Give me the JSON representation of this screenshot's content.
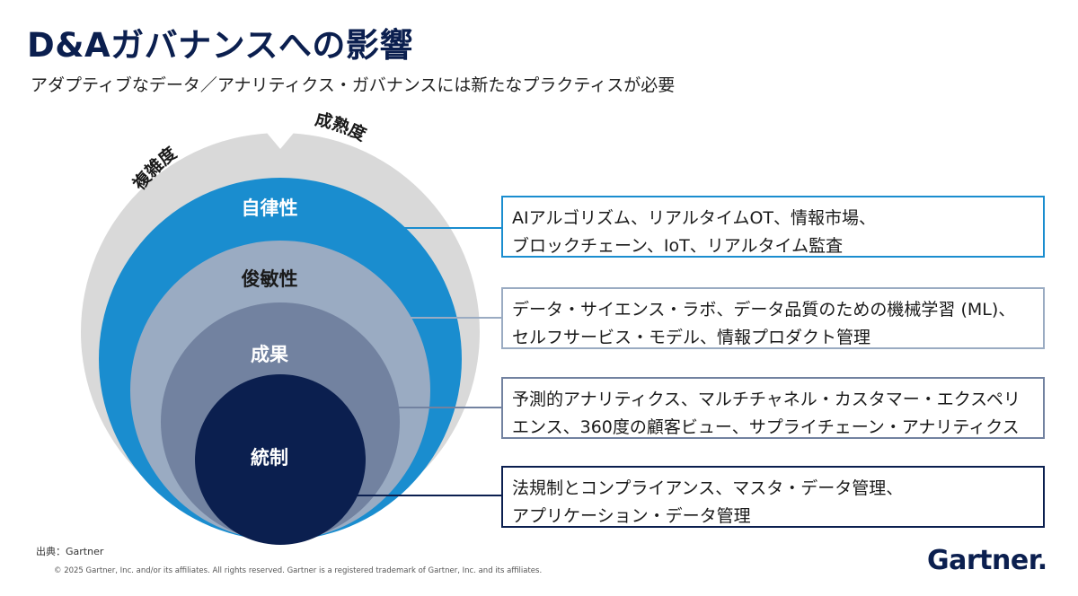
{
  "header": {
    "title": "D&Aガバナンスへの影響",
    "subtitle": "アダプティブなデータ／アナリティクス・ガバナンスには新たなプラクティスが必要"
  },
  "diagram": {
    "outer_arc_labels": {
      "left": "複雑度",
      "right": "成熟度"
    },
    "levels": [
      {
        "label": "自律性",
        "description": "AIアルゴリズム、リアルタイムOT、情報市場、\nブロックチェーン、IoT、リアルタイム監査",
        "color": "#1a8dcf"
      },
      {
        "label": "俊敏性",
        "description": "データ・サイエンス・ラボ、データ品質のための機械学習 (ML)、\nセルフサービス・モデル、情報プロダクト管理",
        "color": "#9aabc2"
      },
      {
        "label": "成果",
        "description": "予測的アナリティクス、マルチチャネル・カスタマー・エクスペリ\nエンス、360度の顧客ビュー、サプライチェーン・アナリティクス",
        "color": "#7282a0"
      },
      {
        "label": "統制",
        "description": "法規制とコンプライアンス、マスタ・データ管理、\nアプリケーション・データ管理",
        "color": "#0b1f4f"
      }
    ],
    "outer_ring_color": "#d9d9d9"
  },
  "footer": {
    "source": "出典：Gartner",
    "copyright": "© 2025 Gartner, Inc. and/or its affiliates. All rights reserved. Gartner is a registered trademark of Gartner, Inc. and its affiliates.",
    "logo": "Gartner."
  }
}
